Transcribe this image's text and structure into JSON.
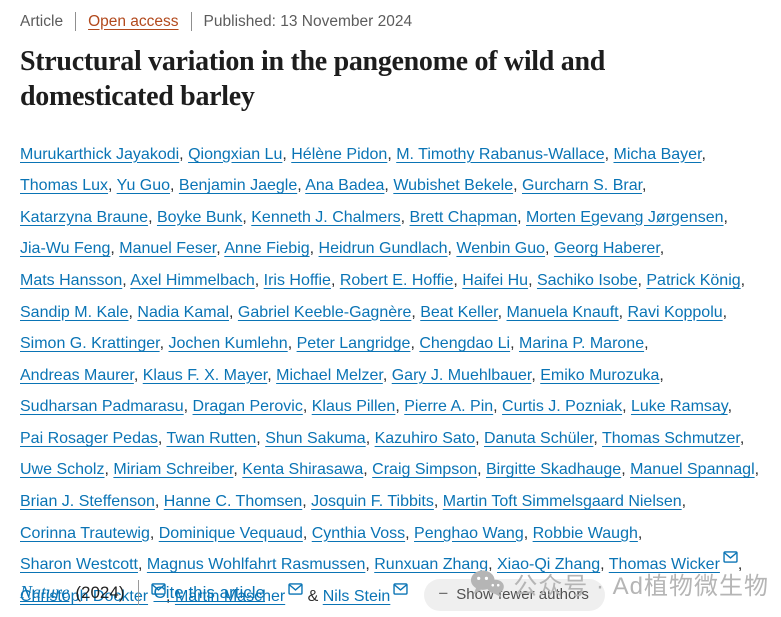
{
  "meta": {
    "article_type": "Article",
    "open_access_label": "Open access",
    "published": "Published: 13 November 2024"
  },
  "title": "Structural variation in the pangenome of wild and domesticated barley",
  "authors": {
    "list": [
      {
        "name": "Murukarthick Jayakodi"
      },
      {
        "name": "Qiongxian Lu"
      },
      {
        "name": "Hélène Pidon"
      },
      {
        "name": "M. Timothy Rabanus-Wallace"
      },
      {
        "name": "Micha Bayer"
      },
      {
        "name": "Thomas Lux"
      },
      {
        "name": "Yu Guo"
      },
      {
        "name": "Benjamin Jaegle"
      },
      {
        "name": "Ana Badea"
      },
      {
        "name": "Wubishet Bekele"
      },
      {
        "name": "Gurcharn S. Brar"
      },
      {
        "name": "Katarzyna Braune"
      },
      {
        "name": "Boyke Bunk"
      },
      {
        "name": "Kenneth J. Chalmers"
      },
      {
        "name": "Brett Chapman"
      },
      {
        "name": "Morten Egevang Jørgensen"
      },
      {
        "name": "Jia-Wu Feng"
      },
      {
        "name": "Manuel Feser"
      },
      {
        "name": "Anne Fiebig"
      },
      {
        "name": "Heidrun Gundlach"
      },
      {
        "name": "Wenbin Guo"
      },
      {
        "name": "Georg Haberer"
      },
      {
        "name": "Mats Hansson"
      },
      {
        "name": "Axel Himmelbach"
      },
      {
        "name": "Iris Hoffie"
      },
      {
        "name": "Robert E. Hoffie"
      },
      {
        "name": "Haifei Hu"
      },
      {
        "name": "Sachiko Isobe"
      },
      {
        "name": "Patrick König"
      },
      {
        "name": "Sandip M. Kale"
      },
      {
        "name": "Nadia Kamal"
      },
      {
        "name": "Gabriel Keeble-Gagnère"
      },
      {
        "name": "Beat Keller"
      },
      {
        "name": "Manuela Knauft"
      },
      {
        "name": "Ravi Koppolu"
      },
      {
        "name": "Simon G. Krattinger"
      },
      {
        "name": "Jochen Kumlehn"
      },
      {
        "name": "Peter Langridge"
      },
      {
        "name": "Chengdao Li"
      },
      {
        "name": "Marina P. Marone"
      },
      {
        "name": "Andreas Maurer"
      },
      {
        "name": "Klaus F. X. Mayer"
      },
      {
        "name": "Michael Melzer"
      },
      {
        "name": "Gary J. Muehlbauer"
      },
      {
        "name": "Emiko Murozuka"
      },
      {
        "name": "Sudharsan Padmarasu"
      },
      {
        "name": "Dragan Perovic"
      },
      {
        "name": "Klaus Pillen"
      },
      {
        "name": "Pierre A. Pin"
      },
      {
        "name": "Curtis J. Pozniak"
      },
      {
        "name": "Luke Ramsay"
      },
      {
        "name": "Pai Rosager Pedas"
      },
      {
        "name": "Twan Rutten"
      },
      {
        "name": "Shun Sakuma"
      },
      {
        "name": "Kazuhiro Sato"
      },
      {
        "name": "Danuta Schüler"
      },
      {
        "name": "Thomas Schmutzer"
      },
      {
        "name": "Uwe Scholz"
      },
      {
        "name": "Miriam Schreiber"
      },
      {
        "name": "Kenta Shirasawa"
      },
      {
        "name": "Craig Simpson"
      },
      {
        "name": "Birgitte Skadhauge"
      },
      {
        "name": "Manuel Spannagl"
      },
      {
        "name": "Brian J. Steffenson"
      },
      {
        "name": "Hanne C. Thomsen"
      },
      {
        "name": "Josquin F. Tibbits"
      },
      {
        "name": "Martin Toft Simmelsgaard Nielsen"
      },
      {
        "name": "Corinna Trautewig"
      },
      {
        "name": "Dominique Vequaud"
      },
      {
        "name": "Cynthia Voss"
      },
      {
        "name": "Penghao Wang"
      },
      {
        "name": "Robbie Waugh"
      },
      {
        "name": "Sharon Westcott"
      },
      {
        "name": "Magnus Wohlfahrt Rasmussen"
      },
      {
        "name": "Runxuan Zhang"
      },
      {
        "name": "Xiao-Qi Zhang"
      },
      {
        "name": "Thomas Wicker",
        "email": true
      },
      {
        "name": "Christoph Dockter",
        "email": true
      },
      {
        "name": "Martin Mascher",
        "email": true
      },
      {
        "name": "Nils Stein",
        "email": true
      }
    ],
    "comma_separator": ", ",
    "last_separator": " & ",
    "show_fewer_label": "Show fewer authors",
    "minus_glyph": "−"
  },
  "footer": {
    "journal": "Nature",
    "year": "(2024)",
    "cite_label": "Cite this article"
  },
  "watermark": {
    "text": "公众号 · Ad植物微生物",
    "icon": "wechat-icon"
  },
  "colors": {
    "link_blue": "#0a74b5",
    "open_access_rust": "#b2491c",
    "title_ink": "#1d1d1d",
    "meta_gray": "#5c5c5c",
    "button_bg": "#efefef",
    "watermark_gray": "#b5b5b5"
  }
}
